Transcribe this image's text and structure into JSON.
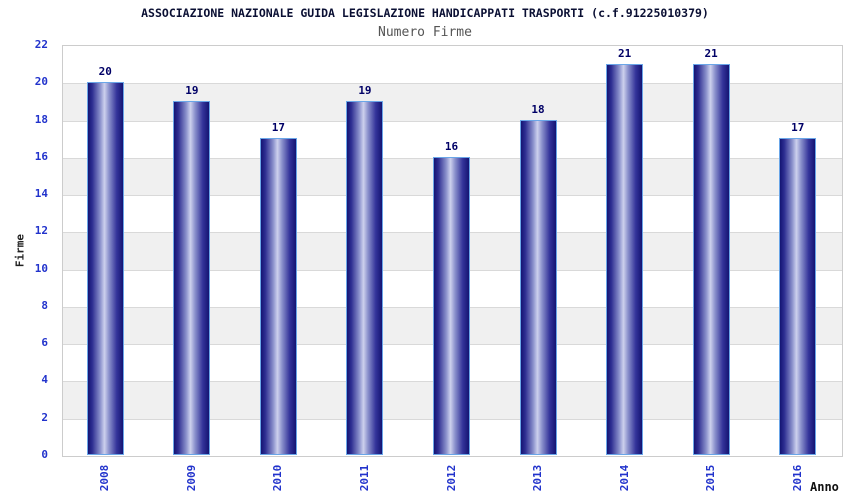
{
  "chart_data": {
    "type": "bar",
    "title": "ASSOCIAZIONE NAZIONALE GUIDA LEGISLAZIONE HANDICAPPATI TRASPORTI (c.f.91225010379)",
    "subtitle": "Numero Firme",
    "categories": [
      "2008",
      "2009",
      "2010",
      "2011",
      "2012",
      "2013",
      "2014",
      "2015",
      "2016"
    ],
    "values": [
      20,
      19,
      17,
      19,
      16,
      18,
      21,
      21,
      17
    ],
    "xlabel": "Anno",
    "ylabel": "Firme",
    "ylim": [
      0,
      22
    ],
    "ytick_step": 2,
    "yticks": [
      0,
      2,
      4,
      6,
      8,
      10,
      12,
      14,
      16,
      18,
      20,
      22
    ],
    "grid": true,
    "legend_position": "none",
    "band_fill_alternating": true,
    "colors": {
      "bar_edge_dark": "#141473",
      "bar_highlight": "#cdd1ed",
      "bar_outline": "#6aa6e8",
      "tick_label": "#2233cc",
      "value_label": "#000066",
      "title": "#0a0f33",
      "subtitle": "#555555",
      "axis_label": "#222222",
      "plot_border": "#cccccc",
      "gridline": "#d9d9d9",
      "band_alt": "#f0f0f0",
      "background": "#ffffff"
    }
  }
}
